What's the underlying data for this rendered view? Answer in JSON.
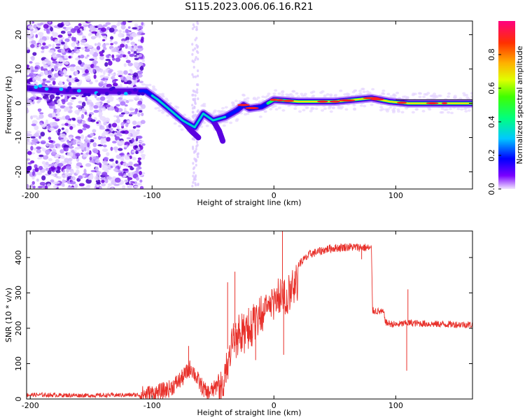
{
  "title": "S115.2023.006.06.16.R21",
  "chart_data": [
    {
      "type": "heatmap",
      "name": "spectrogram",
      "xlabel": "Height of straight line (km)",
      "ylabel": "Frequency (Hz)",
      "xlim": [
        -203,
        163
      ],
      "ylim": [
        -25,
        24
      ],
      "xticks": [
        -200,
        -100,
        0,
        100
      ],
      "yticks": [
        -20,
        -10,
        0,
        10,
        20
      ],
      "ridge": [
        {
          "x": -203,
          "y": 4.5
        },
        {
          "x": -190,
          "y": 4
        },
        {
          "x": -170,
          "y": 3.5
        },
        {
          "x": -150,
          "y": 3.5
        },
        {
          "x": -130,
          "y": 3.5
        },
        {
          "x": -105,
          "y": 3.5
        },
        {
          "x": -95,
          "y": 1
        },
        {
          "x": -85,
          "y": -2
        },
        {
          "x": -75,
          "y": -5
        },
        {
          "x": -65,
          "y": -7
        },
        {
          "x": -58,
          "y": -3
        },
        {
          "x": -50,
          "y": -5
        },
        {
          "x": -40,
          "y": -4
        },
        {
          "x": -30,
          "y": -2
        },
        {
          "x": -25,
          "y": -0.5
        },
        {
          "x": -20,
          "y": -1.5
        },
        {
          "x": -10,
          "y": -1
        },
        {
          "x": 0,
          "y": 1
        },
        {
          "x": 20,
          "y": 0.5
        },
        {
          "x": 50,
          "y": 0.5
        },
        {
          "x": 80,
          "y": 1.5
        },
        {
          "x": 95,
          "y": 0.5
        },
        {
          "x": 110,
          "y": 0
        },
        {
          "x": 130,
          "y": 0
        },
        {
          "x": 163,
          "y": 0
        }
      ],
      "branch": [
        {
          "x": -75,
          "y": -5
        },
        {
          "x": -68,
          "y": -8
        },
        {
          "x": -62,
          "y": -10
        }
      ],
      "branch2": [
        {
          "x": -50,
          "y": -5
        },
        {
          "x": -45,
          "y": -8
        },
        {
          "x": -42,
          "y": -11
        }
      ]
    },
    {
      "type": "line",
      "name": "snr",
      "xlabel": "Height of straight line (km)",
      "ylabel": "SNR (10 * v/v)",
      "xlim": [
        -203,
        163
      ],
      "ylim": [
        0,
        475
      ],
      "xticks": [
        -200,
        -100,
        0,
        100
      ],
      "yticks": [
        0,
        100,
        200,
        300,
        400
      ],
      "envelope": [
        {
          "x": -203,
          "y": 12
        },
        {
          "x": -150,
          "y": 10
        },
        {
          "x": -110,
          "y": 12
        },
        {
          "x": -95,
          "y": 18
        },
        {
          "x": -85,
          "y": 30
        },
        {
          "x": -75,
          "y": 60
        },
        {
          "x": -68,
          "y": 90
        },
        {
          "x": -62,
          "y": 50
        },
        {
          "x": -55,
          "y": 15
        },
        {
          "x": -48,
          "y": 30
        },
        {
          "x": -42,
          "y": 90
        },
        {
          "x": -35,
          "y": 180
        },
        {
          "x": -28,
          "y": 230
        },
        {
          "x": -20,
          "y": 240
        },
        {
          "x": -12,
          "y": 270
        },
        {
          "x": -5,
          "y": 300
        },
        {
          "x": 2,
          "y": 320
        },
        {
          "x": 10,
          "y": 330
        },
        {
          "x": 20,
          "y": 380
        },
        {
          "x": 30,
          "y": 410
        },
        {
          "x": 45,
          "y": 425
        },
        {
          "x": 60,
          "y": 430
        },
        {
          "x": 75,
          "y": 428
        },
        {
          "x": 80,
          "y": 425
        },
        {
          "x": 81,
          "y": 250
        },
        {
          "x": 90,
          "y": 245
        },
        {
          "x": 92,
          "y": 215
        },
        {
          "x": 100,
          "y": 210
        },
        {
          "x": 110,
          "y": 215
        },
        {
          "x": 130,
          "y": 212
        },
        {
          "x": 163,
          "y": 210
        }
      ],
      "noise": [
        {
          "from": -203,
          "to": -110,
          "amp": 6
        },
        {
          "from": -110,
          "to": -45,
          "amp": 25
        },
        {
          "from": -45,
          "to": 20,
          "amp": 60
        },
        {
          "from": 20,
          "to": 80,
          "amp": 12
        },
        {
          "from": 80,
          "to": 163,
          "amp": 10
        }
      ],
      "spikes": [
        {
          "x": -70,
          "y": 150
        },
        {
          "x": -38,
          "y": 330
        },
        {
          "x": -32,
          "y": 360
        },
        {
          "x": -15,
          "y": 110
        },
        {
          "x": 7,
          "y": 475
        },
        {
          "x": 8,
          "y": 125
        },
        {
          "x": 72,
          "y": 395
        },
        {
          "x": 109,
          "y": 80
        },
        {
          "x": 110,
          "y": 310
        }
      ]
    }
  ],
  "colorbar": {
    "label": "Normalized spectral amplitude",
    "ticks": [
      0.0,
      0.2,
      0.4,
      0.6,
      0.8
    ],
    "tick_labels": [
      "0.0",
      "0.2",
      "0.4",
      "0.6",
      "0.8"
    ],
    "range": [
      0,
      1
    ]
  },
  "colors": {
    "snr_line": "#e8302a",
    "background_dots": "#8a3cf0",
    "frame": "#000000"
  }
}
